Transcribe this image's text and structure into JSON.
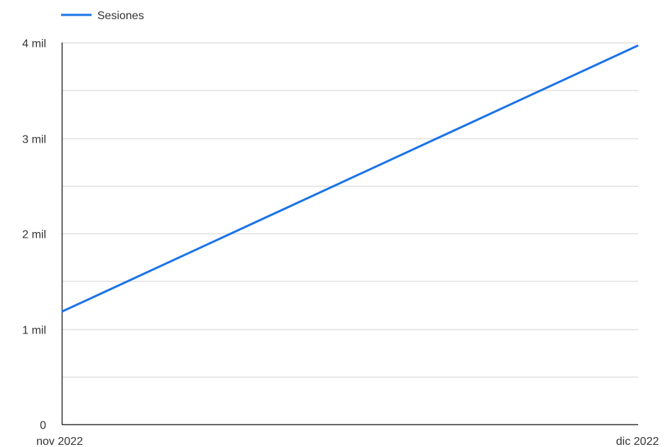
{
  "chart_data": {
    "type": "line",
    "title": "",
    "xlabel": "",
    "ylabel": "",
    "categories": [
      "nov 2022",
      "dic 2022"
    ],
    "series": [
      {
        "name": "Sesiones",
        "color": "#1a73e8",
        "values": [
          1180,
          3970
        ]
      }
    ],
    "ylim": [
      0,
      4000
    ],
    "y_ticks": [
      {
        "value": 0,
        "label": "0"
      },
      {
        "value": 1000,
        "label": "1 mil"
      },
      {
        "value": 2000,
        "label": "2 mil"
      },
      {
        "value": 3000,
        "label": "3 mil"
      },
      {
        "value": 4000,
        "label": "4 mil"
      }
    ],
    "minor_gridlines": [
      500,
      1500,
      2500,
      3500
    ],
    "grid": true,
    "legend_position": "top-left",
    "colors": {
      "gridline": "#e0e0e0",
      "axis": "#333333",
      "text": "#333333"
    }
  }
}
